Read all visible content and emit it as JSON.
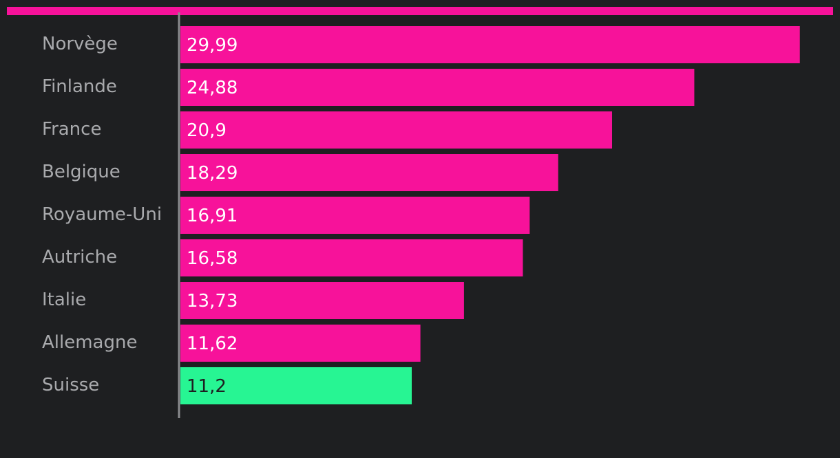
{
  "colors": {
    "background": "#1e1f21",
    "accent": "#f7129a",
    "highlight": "#27f593",
    "category_text": "#a9aaad",
    "value_text_on_accent": "#ffffff",
    "value_text_on_highlight": "#1e1f21",
    "axis": "#8a8b8e"
  },
  "chart_data": {
    "type": "bar",
    "orientation": "horizontal",
    "title": "",
    "xlabel": "",
    "ylabel": "",
    "xlim": [
      0,
      30.6
    ],
    "grid": false,
    "legend": "none",
    "categories": [
      "Norvège",
      "Finlande",
      "France",
      "Belgique",
      "Royaume-Uni",
      "Autriche",
      "Italie",
      "Allemagne",
      "Suisse"
    ],
    "values": [
      29.99,
      24.88,
      20.9,
      18.29,
      16.91,
      16.58,
      13.73,
      11.62,
      11.2
    ],
    "value_labels": [
      "29,99",
      "24,88",
      "20,9",
      "18,29",
      "16,91",
      "16,58",
      "13,73",
      "11,62",
      "11,2"
    ],
    "highlighted_category": "Suisse"
  }
}
